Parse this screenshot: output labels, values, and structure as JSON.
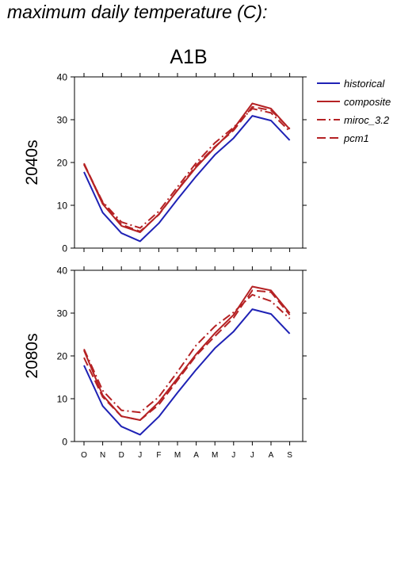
{
  "page": {
    "title": "maximum daily temperature (C):"
  },
  "chart_data": {
    "type": "line",
    "title": "A1B",
    "months": [
      "O",
      "N",
      "D",
      "J",
      "F",
      "M",
      "A",
      "M",
      "J",
      "J",
      "A",
      "S"
    ],
    "ylim": [
      0,
      40
    ],
    "yticks": [
      0,
      10,
      20,
      30,
      40
    ],
    "grid": false,
    "legend_position": "right",
    "legend": [
      {
        "name": "historical",
        "color": "#1f22b5",
        "dash": "solid"
      },
      {
        "name": "composite",
        "color": "#b52224",
        "dash": "solid"
      },
      {
        "name": "miroc_3.2",
        "color": "#b52224",
        "dash": "dashdot"
      },
      {
        "name": "pcm1",
        "color": "#b52224",
        "dash": "dashed"
      }
    ],
    "panels": [
      {
        "label": "2040s",
        "series": [
          {
            "name": "historical",
            "values": [
              17.8,
              8.3,
              3.5,
              1.6,
              5.8,
              11.4,
              16.8,
              21.8,
              25.7,
              30.9,
              29.8,
              25.2
            ]
          },
          {
            "name": "composite",
            "values": [
              19.7,
              10.3,
              5.2,
              3.7,
              7.9,
              13.5,
              18.9,
              23.5,
              27.9,
              33.8,
              32.6,
              27.8
            ]
          },
          {
            "name": "miroc_3.2",
            "values": [
              19.5,
              10.8,
              6.1,
              4.7,
              8.6,
              14.3,
              19.9,
              24.6,
              28.2,
              32.6,
              31.6,
              27.3
            ]
          },
          {
            "name": "pcm1",
            "values": [
              19.8,
              10.6,
              5.5,
              3.9,
              7.8,
              13.6,
              19.3,
              23.7,
              27.5,
              33.0,
              32.2,
              27.9
            ]
          }
        ]
      },
      {
        "label": "2080s",
        "series": [
          {
            "name": "historical",
            "values": [
              17.8,
              8.3,
              3.5,
              1.6,
              5.8,
              11.4,
              16.8,
              21.8,
              25.7,
              30.9,
              29.8,
              25.2
            ]
          },
          {
            "name": "composite",
            "values": [
              21.3,
              10.8,
              5.9,
              5.0,
              9.2,
              14.8,
              20.4,
              25.3,
              29.6,
              36.2,
              35.3,
              30.0
            ]
          },
          {
            "name": "miroc_3.2",
            "values": [
              21.6,
              11.9,
              7.3,
              6.8,
              10.4,
              16.3,
              22.5,
              26.9,
              30.2,
              34.3,
              32.8,
              28.7
            ]
          },
          {
            "name": "pcm1",
            "values": [
              19.6,
              10.4,
              5.9,
              5.0,
              8.6,
              14.3,
              20.1,
              24.6,
              28.9,
              35.3,
              34.9,
              29.6
            ]
          }
        ]
      }
    ]
  }
}
